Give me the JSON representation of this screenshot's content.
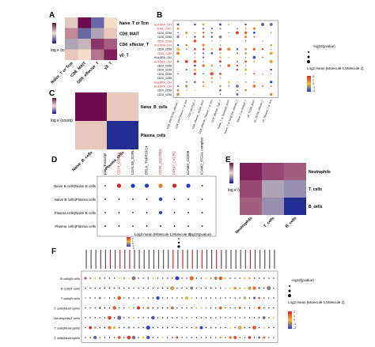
{
  "panels": [
    {
      "id": "A",
      "label": "A",
      "type": "heatmap",
      "rows": [
        "Naive_T or Tcm",
        "CD8_MAIT",
        "CD8_effector_T",
        "γδ_T"
      ],
      "cols": [
        "Naive_T or Tcm",
        "CD8_MAIT",
        "CD8_effector_T",
        "γδ_T"
      ],
      "values": [
        [
          0.45,
          1.0,
          0.2,
          0.5
        ],
        [
          0.7,
          0.2,
          0.35,
          0.55
        ],
        [
          0.35,
          0.4,
          0.9,
          0.8
        ],
        [
          0.55,
          0.5,
          0.75,
          0.95
        ]
      ],
      "legend_title": "log e (count)"
    },
    {
      "id": "B",
      "label": "B",
      "type": "dot",
      "rows": [
        "HLA-DRA_CD4",
        "CD8A_CD2C",
        "CD2A_CD58",
        "CD2A_CD58",
        "CD2A_CD58",
        "HLA-DRA_CD4",
        "CD2A_CD58",
        "CD2A_CD58",
        "HLA-DRA_CD4",
        "HLA-DRA_CD4",
        "CD2A_CD58",
        "CD2A_CD58",
        "CD2A_CD58",
        "CD2A_CD58",
        "HLA-DRA_CD4",
        "HLA-DRA_CD4",
        "CD2A_CD58",
        "CD2A_CD58"
      ],
      "red_rows": [
        0,
        1,
        4,
        5,
        7,
        9,
        14,
        15
      ],
      "cols": [
        "CD8_MAIT|CD8_effector_T",
        "CD8_MAIT|Naive_T or Tcm",
        "CD8_MAIT|γδ_T",
        "CD8_effector_T|CD8_MAIT",
        "CD8_effector_T|Naive_T or Tcm",
        "CD8_effector_T|γδ_T",
        "Naive_T or Tcm|CD8_MAIT",
        "Naive_T or Tcm|CD8_effector_T",
        "Naive_T or Tcm|γδ_T",
        "γδ_T|CD8_MAIT",
        "γδ_T|CD8_effector_T",
        "γδ_T|Naive_T or Tcm"
      ],
      "legend_dot_title": "-log10(pvalue)",
      "legend_color_title": "Log2 mean (Molecule 1,Molecule 2)",
      "legend_ticks": [
        "2",
        "1",
        "0",
        "-1",
        "-2"
      ]
    },
    {
      "id": "C",
      "label": "C",
      "type": "heatmap",
      "rows": [
        "Naive_B_cells",
        "Plasma_cells"
      ],
      "cols": [
        "Naive_B_cells",
        "Plasma_cells"
      ],
      "values": [
        [
          1.0,
          0.55
        ],
        [
          0.55,
          0.05
        ]
      ],
      "legend_title": "log e (count)"
    },
    {
      "id": "D",
      "label": "D",
      "type": "dot",
      "rows": [
        "Naive B cells|Naive B cells",
        "Naive B cells|Plasma cells",
        "Plasma cells|Naive B cells",
        "Plasma cells|Plasma cells"
      ],
      "cols": [
        "pair_Trascript",
        "CD74_CD44A",
        "LGALS9_SORL1",
        "BTLA_TNFRSF14",
        "CD99_ADGRE5",
        "PPBP_CXCR2",
        "ICAM3_CD209",
        "ICAM2_ITGAL complex"
      ],
      "red_cols": [
        1,
        4,
        5
      ],
      "legend_color_title": "Log2 mean (Molecule 1,Molecule 2)",
      "legend_dot_title": "-log10(pvalue)",
      "legend_ticks": [
        "2",
        "1",
        "0",
        "-1",
        "-2"
      ]
    },
    {
      "id": "E",
      "label": "E",
      "type": "heatmap",
      "rows": [
        "Neutrophils",
        "T_cells",
        "B_cells"
      ],
      "cols": [
        "Neutrophils",
        "T_cells",
        "B_cells"
      ],
      "values": [
        [
          0.95,
          0.85,
          0.8
        ],
        [
          0.85,
          0.35,
          0.3
        ],
        [
          0.8,
          0.3,
          0.05
        ]
      ],
      "legend_title": "log e (count)"
    },
    {
      "id": "F",
      "label": "F",
      "type": "dot",
      "rows": [
        "B cells|B cells",
        "B cells|T cells",
        "T cells|B cells",
        "T cells|Neutrophils",
        "Neutrophils|T cells",
        "T cells|Neutrophils",
        "T cells|Neutrophils"
      ],
      "n_cols": 40,
      "red_cols": [
        5,
        7,
        9,
        18,
        20,
        22,
        24,
        27,
        34
      ],
      "legend_dot_title": "-log10(pvalue)",
      "legend_color_title": "Log2 mean (Molecule 1,Molecule 2)",
      "legend_ticks": [
        "2",
        "1",
        "0",
        "-1",
        "-2"
      ]
    }
  ],
  "colors": {
    "heat_low": "#0b1a8c",
    "heat_mid": "#f5ddc8",
    "heat_high": "#6e0a4e",
    "dot_low": "#1e3fd0",
    "dot_high": "#e02020",
    "dot_mid": "#f7b733",
    "label_red": "#d4282c"
  }
}
